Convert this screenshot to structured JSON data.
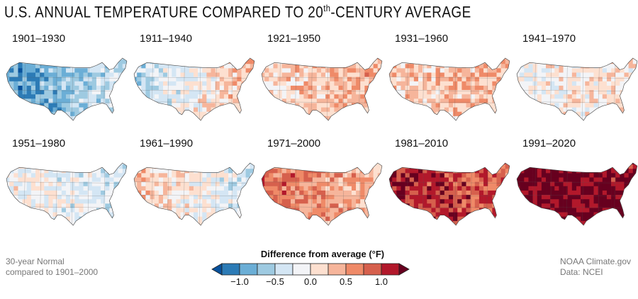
{
  "title": {
    "main": "U.S. ANNUAL TEMPERATURE COMPARED TO 20",
    "sup": "th",
    "rest": "-CENTURY AVERAGE"
  },
  "chart_data": {
    "type": "heatmap",
    "title": "U.S. ANNUAL TEMPERATURE COMPARED TO 20th-CENTURY AVERAGE",
    "subtitle": "30-year Normal compared to 1901–2000",
    "panels": [
      {
        "label": "1901–1930",
        "mean_anomaly": -0.8,
        "east_anomaly": -0.3,
        "west_anomaly": -1.0
      },
      {
        "label": "1911–1940",
        "mean_anomaly": -0.1,
        "east_anomaly": 0.4,
        "west_anomaly": -0.5
      },
      {
        "label": "1921–1950",
        "mean_anomaly": 0.3,
        "east_anomaly": 0.5,
        "west_anomaly": 0.1
      },
      {
        "label": "1931–1960",
        "mean_anomaly": 0.3,
        "east_anomaly": 0.4,
        "west_anomaly": 0.2
      },
      {
        "label": "1941–1970",
        "mean_anomaly": 0.0,
        "east_anomaly": 0.1,
        "west_anomaly": -0.1
      },
      {
        "label": "1951–1980",
        "mean_anomaly": -0.2,
        "east_anomaly": -0.4,
        "west_anomaly": 0.0
      },
      {
        "label": "1961–1990",
        "mean_anomaly": -0.1,
        "east_anomaly": -0.4,
        "west_anomaly": 0.3
      },
      {
        "label": "1971–2000",
        "mean_anomaly": 0.5,
        "east_anomaly": 0.3,
        "west_anomaly": 0.8
      },
      {
        "label": "1981–2010",
        "mean_anomaly": 1.0,
        "east_anomaly": 0.8,
        "west_anomaly": 1.2
      },
      {
        "label": "1991–2020",
        "mean_anomaly": 1.3,
        "east_anomaly": 1.3,
        "west_anomaly": 1.4
      }
    ],
    "legend": {
      "title": "Difference from average (°F)",
      "ticks": [
        "−1.0",
        "−0.5",
        "0.0",
        "0.5",
        "1.0"
      ],
      "tick_values": [
        -1.0,
        -0.5,
        0.0,
        0.5,
        1.0
      ],
      "range": [
        -1.25,
        1.25
      ],
      "step": 0.25,
      "colors": [
        "#08519c",
        "#2c7bb6",
        "#6baed6",
        "#9ecae1",
        "#d4e6f4",
        "#f3f4f7",
        "#fde0d0",
        "#f6b59b",
        "#ef8a68",
        "#d6604d",
        "#b2182b",
        "#67001f"
      ]
    }
  },
  "footer": {
    "left_line1": "30-year Normal",
    "left_line2": "compared to 1901–2000",
    "right_line1": "NOAA Climate.gov",
    "right_line2": "Data: NCEI"
  }
}
